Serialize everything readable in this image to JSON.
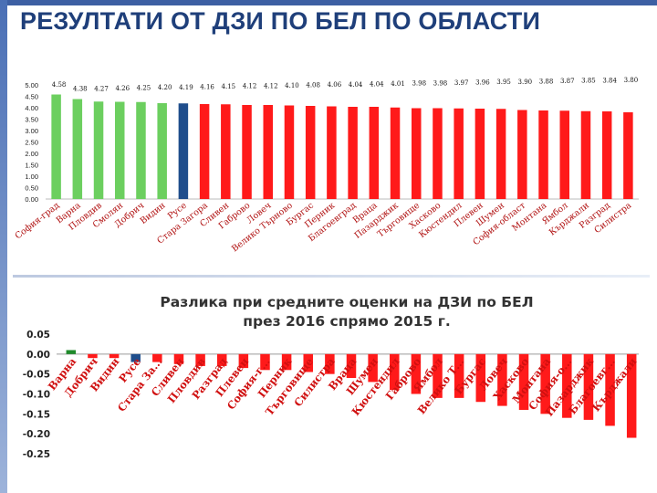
{
  "page": {
    "title": "РЕЗУЛТАТИ ОТ ДЗИ ПО БЕЛ ПО ОБЛАСТИ"
  },
  "chart_data": [
    {
      "type": "bar",
      "title": "",
      "xlabel": "",
      "ylabel": "",
      "ylim": [
        0,
        5
      ],
      "yticks": [
        "5.00",
        "4.50",
        "4.00",
        "3.50",
        "3.00",
        "2.50",
        "2.00",
        "1.50",
        "1.00",
        "0.50",
        "0.00"
      ],
      "categories": [
        "София-град",
        "Варна",
        "Пловдив",
        "Смолян",
        "Добрич",
        "Видин",
        "Русе",
        "Стара Загора",
        "Сливен",
        "Габрово",
        "Ловеч",
        "Велико Търново",
        "Бургас",
        "Перник",
        "Благоевград",
        "Враца",
        "Пазарджик",
        "Търговище",
        "Хасково",
        "Кюстендил",
        "Плевен",
        "Шумен",
        "София-област",
        "Монтана",
        "Ямбол",
        "Кърджали",
        "Разград",
        "Силистра"
      ],
      "values": [
        4.58,
        4.38,
        4.27,
        4.26,
        4.25,
        4.2,
        4.19,
        4.16,
        4.15,
        4.12,
        4.12,
        4.1,
        4.08,
        4.06,
        4.04,
        4.04,
        4.01,
        3.98,
        3.98,
        3.97,
        3.96,
        3.95,
        3.9,
        3.88,
        3.87,
        3.85,
        3.84,
        3.8
      ],
      "value_labels": [
        "4.58",
        "4.38",
        "4.27",
        "4.26",
        "4.25",
        "4.20",
        "4.19",
        "4.16",
        "4.15",
        "4.12",
        "4.12",
        "4.10",
        "4.08",
        "4.06",
        "4.04",
        "4.04",
        "4.01",
        "3.98",
        "3.98",
        "3.97",
        "3.96",
        "3.95",
        "3.90",
        "3.88",
        "3.87",
        "3.85",
        "3.84",
        "3.80"
      ],
      "colors": {
        "highlight_green": "#6ccf5f",
        "highlight_blue": "#1f4e8c",
        "default": "#ff1a1a"
      },
      "bar_color_keys": [
        "highlight_green",
        "highlight_green",
        "highlight_green",
        "highlight_green",
        "highlight_green",
        "highlight_green",
        "highlight_blue",
        "default",
        "default",
        "default",
        "default",
        "default",
        "default",
        "default",
        "default",
        "default",
        "default",
        "default",
        "default",
        "default",
        "default",
        "default",
        "default",
        "default",
        "default",
        "default",
        "default",
        "default"
      ]
    },
    {
      "type": "bar",
      "title": "Разлика при средните оценки на ДЗИ по БЕЛ през 2016 спрямо 2015 г.",
      "title_lines": [
        "Разлика при средните оценки на ДЗИ по БЕЛ",
        "през 2016 спрямо 2015 г."
      ],
      "xlabel": "",
      "ylabel": "",
      "ylim": [
        -0.25,
        0.05
      ],
      "yticks": [
        "0.05",
        "0.00",
        "-0.05",
        "-0.10",
        "-0.15",
        "-0.20",
        "-0.25"
      ],
      "categories": [
        "Варна",
        "Добрич",
        "Видин",
        "Русе",
        "Стара За...",
        "Сливен",
        "Пловдив",
        "Разград",
        "Плевен",
        "София-г...",
        "Перник",
        "Търговище",
        "Силистра",
        "Враца",
        "Шумен",
        "Кюстендил",
        "Габрово",
        "Ямбол",
        "Велико Т...",
        "Бургас",
        "Ловеч",
        "Хасково",
        "Монтана",
        "София-о...",
        "Пазарджик",
        "Благоевг...",
        "Кърджали"
      ],
      "values": [
        0.01,
        -0.01,
        -0.01,
        -0.02,
        -0.02,
        -0.025,
        -0.03,
        -0.03,
        -0.035,
        -0.04,
        -0.04,
        -0.045,
        -0.05,
        -0.06,
        -0.07,
        -0.09,
        -0.1,
        -0.11,
        -0.11,
        -0.12,
        -0.13,
        -0.14,
        -0.15,
        -0.16,
        -0.165,
        -0.18,
        -0.21
      ],
      "colors": {
        "positive": "#1e8a2a",
        "highlight_blue": "#1f4e8c",
        "default": "#ff1a1a"
      },
      "bar_color_keys": [
        "positive",
        "default",
        "default",
        "highlight_blue",
        "default",
        "default",
        "default",
        "default",
        "default",
        "default",
        "default",
        "default",
        "default",
        "default",
        "default",
        "default",
        "default",
        "default",
        "default",
        "default",
        "default",
        "default",
        "default",
        "default",
        "default",
        "default",
        "default"
      ]
    }
  ]
}
